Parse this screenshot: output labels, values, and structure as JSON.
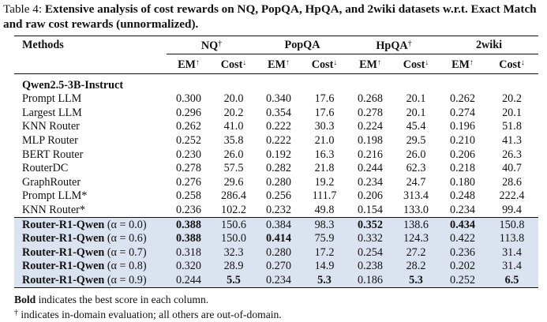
{
  "caption": {
    "label": "Table 4:",
    "text": "Extensive analysis of cost rewards on NQ, PopQA, HpQA, and 2wiki datasets w.r.t. Exact Match and raw cost rewards (unnormalized)."
  },
  "header": {
    "methods": "Methods",
    "datasets": [
      "NQ",
      "PopQA",
      "HpQA",
      "2wiki"
    ],
    "dagger": "†",
    "em": "EM",
    "cost": "Cost",
    "up": "↑",
    "down": "↓"
  },
  "group_label": "Qwen2.5-3B-Instruct",
  "baselines": [
    {
      "name": "Prompt LLM",
      "vals": [
        "0.300",
        "20.0",
        "0.340",
        "17.6",
        "0.268",
        "20.1",
        "0.262",
        "20.2"
      ]
    },
    {
      "name": "Largest LLM",
      "vals": [
        "0.296",
        "20.2",
        "0.354",
        "17.6",
        "0.278",
        "20.1",
        "0.274",
        "20.1"
      ]
    },
    {
      "name": "KNN Router",
      "vals": [
        "0.262",
        "41.0",
        "0.222",
        "30.3",
        "0.224",
        "45.4",
        "0.196",
        "51.8"
      ]
    },
    {
      "name": "MLP Router",
      "vals": [
        "0.252",
        "35.8",
        "0.222",
        "21.0",
        "0.198",
        "29.5",
        "0.210",
        "41.3"
      ]
    },
    {
      "name": "BERT Router",
      "vals": [
        "0.230",
        "26.0",
        "0.192",
        "16.3",
        "0.216",
        "26.0",
        "0.206",
        "26.3"
      ]
    },
    {
      "name": "RouterDC",
      "vals": [
        "0.278",
        "57.5",
        "0.282",
        "21.8",
        "0.244",
        "62.3",
        "0.218",
        "40.7"
      ]
    },
    {
      "name": "GraphRouter",
      "vals": [
        "0.276",
        "29.6",
        "0.280",
        "19.2",
        "0.234",
        "24.7",
        "0.180",
        "28.6"
      ]
    },
    {
      "name": "Prompt LLM*",
      "vals": [
        "0.258",
        "286.4",
        "0.256",
        "111.7",
        "0.206",
        "313.4",
        "0.248",
        "222.4"
      ]
    },
    {
      "name": "KNN Router*",
      "vals": [
        "0.236",
        "102.2",
        "0.232",
        "49.8",
        "0.154",
        "133.0",
        "0.234",
        "99.4"
      ]
    }
  ],
  "ours": [
    {
      "name": "Router-R1-Qwen",
      "alpha": "(α = 0.0)",
      "vals": [
        "0.388",
        "150.6",
        "0.384",
        "98.3",
        "0.352",
        "138.6",
        "0.434",
        "150.8"
      ],
      "bold": [
        0,
        4,
        6
      ]
    },
    {
      "name": "Router-R1-Qwen",
      "alpha": "(α = 0.6)",
      "vals": [
        "0.388",
        "150.0",
        "0.414",
        "75.9",
        "0.332",
        "124.3",
        "0.422",
        "113.8"
      ],
      "bold": [
        0,
        2
      ]
    },
    {
      "name": "Router-R1-Qwen",
      "alpha": "(α = 0.7)",
      "vals": [
        "0.318",
        "32.3",
        "0.280",
        "17.2",
        "0.254",
        "27.2",
        "0.236",
        "31.4"
      ],
      "bold": []
    },
    {
      "name": "Router-R1-Qwen",
      "alpha": "(α = 0.8)",
      "vals": [
        "0.320",
        "28.9",
        "0.270",
        "14.9",
        "0.238",
        "28.2",
        "0.202",
        "31.4"
      ],
      "bold": []
    },
    {
      "name": "Router-R1-Qwen",
      "alpha": "(α = 0.9)",
      "vals": [
        "0.244",
        "5.5",
        "0.234",
        "5.3",
        "0.186",
        "5.3",
        "0.252",
        "6.5"
      ],
      "bold": [
        1,
        3,
        5,
        7
      ]
    }
  ],
  "footnotes": {
    "bold_word": "Bold",
    "bold_rest": " indicates the best score in each column.",
    "dagger": "†",
    "dagger_rest": " indicates in-domain evaluation; all others are out-of-domain."
  }
}
